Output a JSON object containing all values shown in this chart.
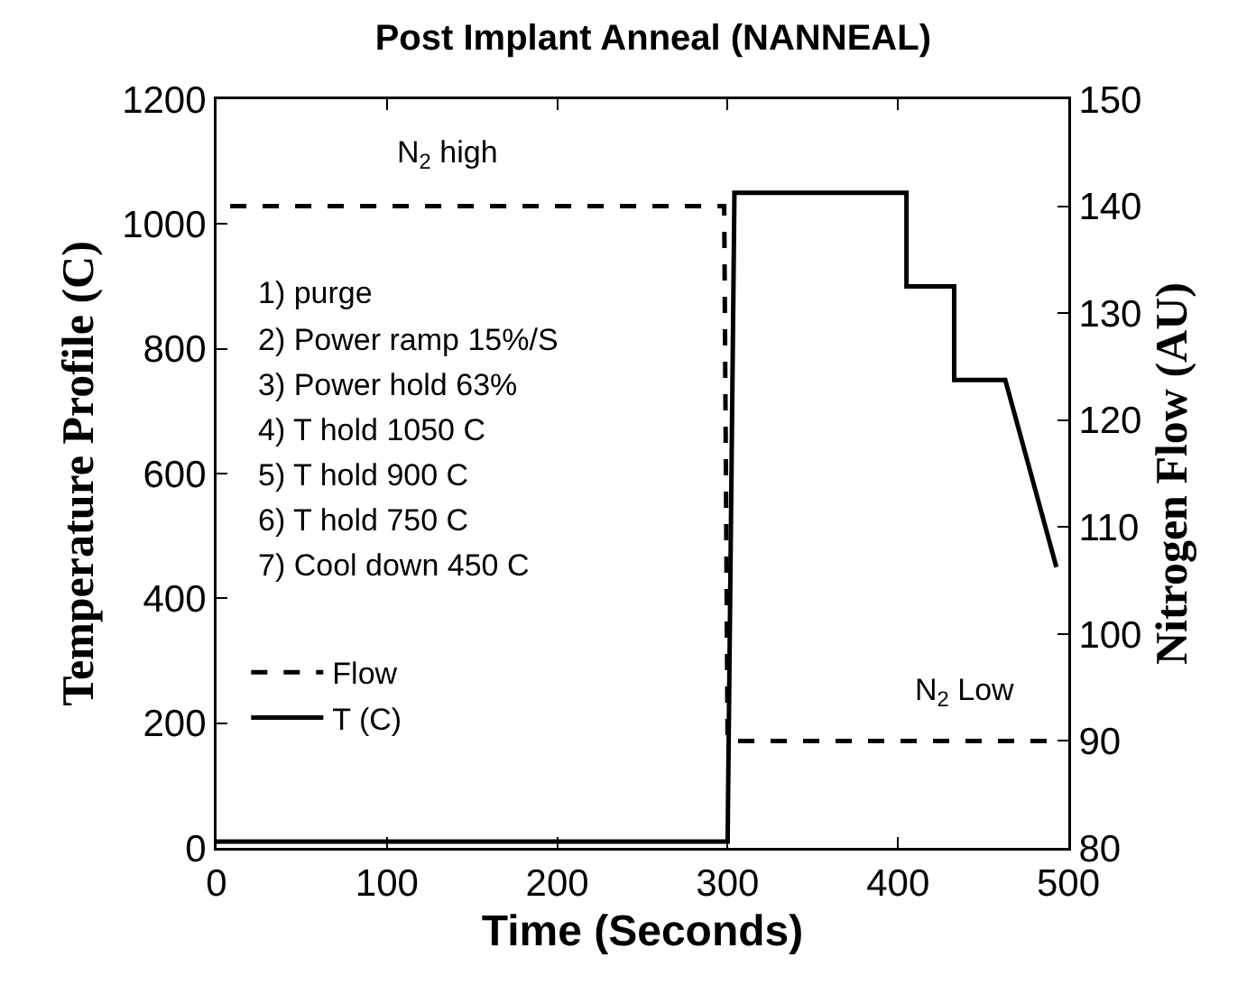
{
  "chart_data": {
    "type": "line",
    "title": "Post Implant Anneal (NANNEAL)",
    "xlabel": "Time (Seconds)",
    "ylabel": "Temperature Profile (C)",
    "y2label": "Nitrogen Flow (AU)",
    "series": [
      {
        "name": "Flow",
        "color": "#000000",
        "axis": "y2",
        "line_style": "dashed",
        "x": [
          8,
          298,
          300,
          495
        ],
        "values": [
          140,
          140,
          90,
          90
        ]
      },
      {
        "name": "T (C)",
        "color": "#000000",
        "line_style": "solid",
        "x": [
          0,
          300,
          304,
          405,
          405,
          433,
          433,
          463,
          493
        ],
        "values": [
          10,
          10,
          1050,
          1050,
          900,
          900,
          750,
          750,
          450
        ]
      }
    ],
    "xlim": [
      0,
      500
    ],
    "xticks": [
      0,
      100,
      200,
      300,
      400,
      500
    ],
    "ylim": [
      0,
      1200
    ],
    "yticks": [
      0,
      200,
      400,
      600,
      800,
      1000,
      1200
    ],
    "y2lim": [
      80,
      150
    ],
    "y2ticks": [
      80,
      90,
      100,
      110,
      120,
      130,
      140,
      150
    ],
    "annotations": [
      "N$_{2}$ high",
      "N$_{2}$ Low",
      "1) purge",
      "2) Power ramp 15%/S",
      "3) Power hold 63%",
      "4) T hold 1050 C",
      "5) T hold 900 C",
      "6) T hold 750 C",
      "7) Cool down 450 C"
    ],
    "legend": "bottom left",
    "grid": false,
    "marker": "none"
  }
}
